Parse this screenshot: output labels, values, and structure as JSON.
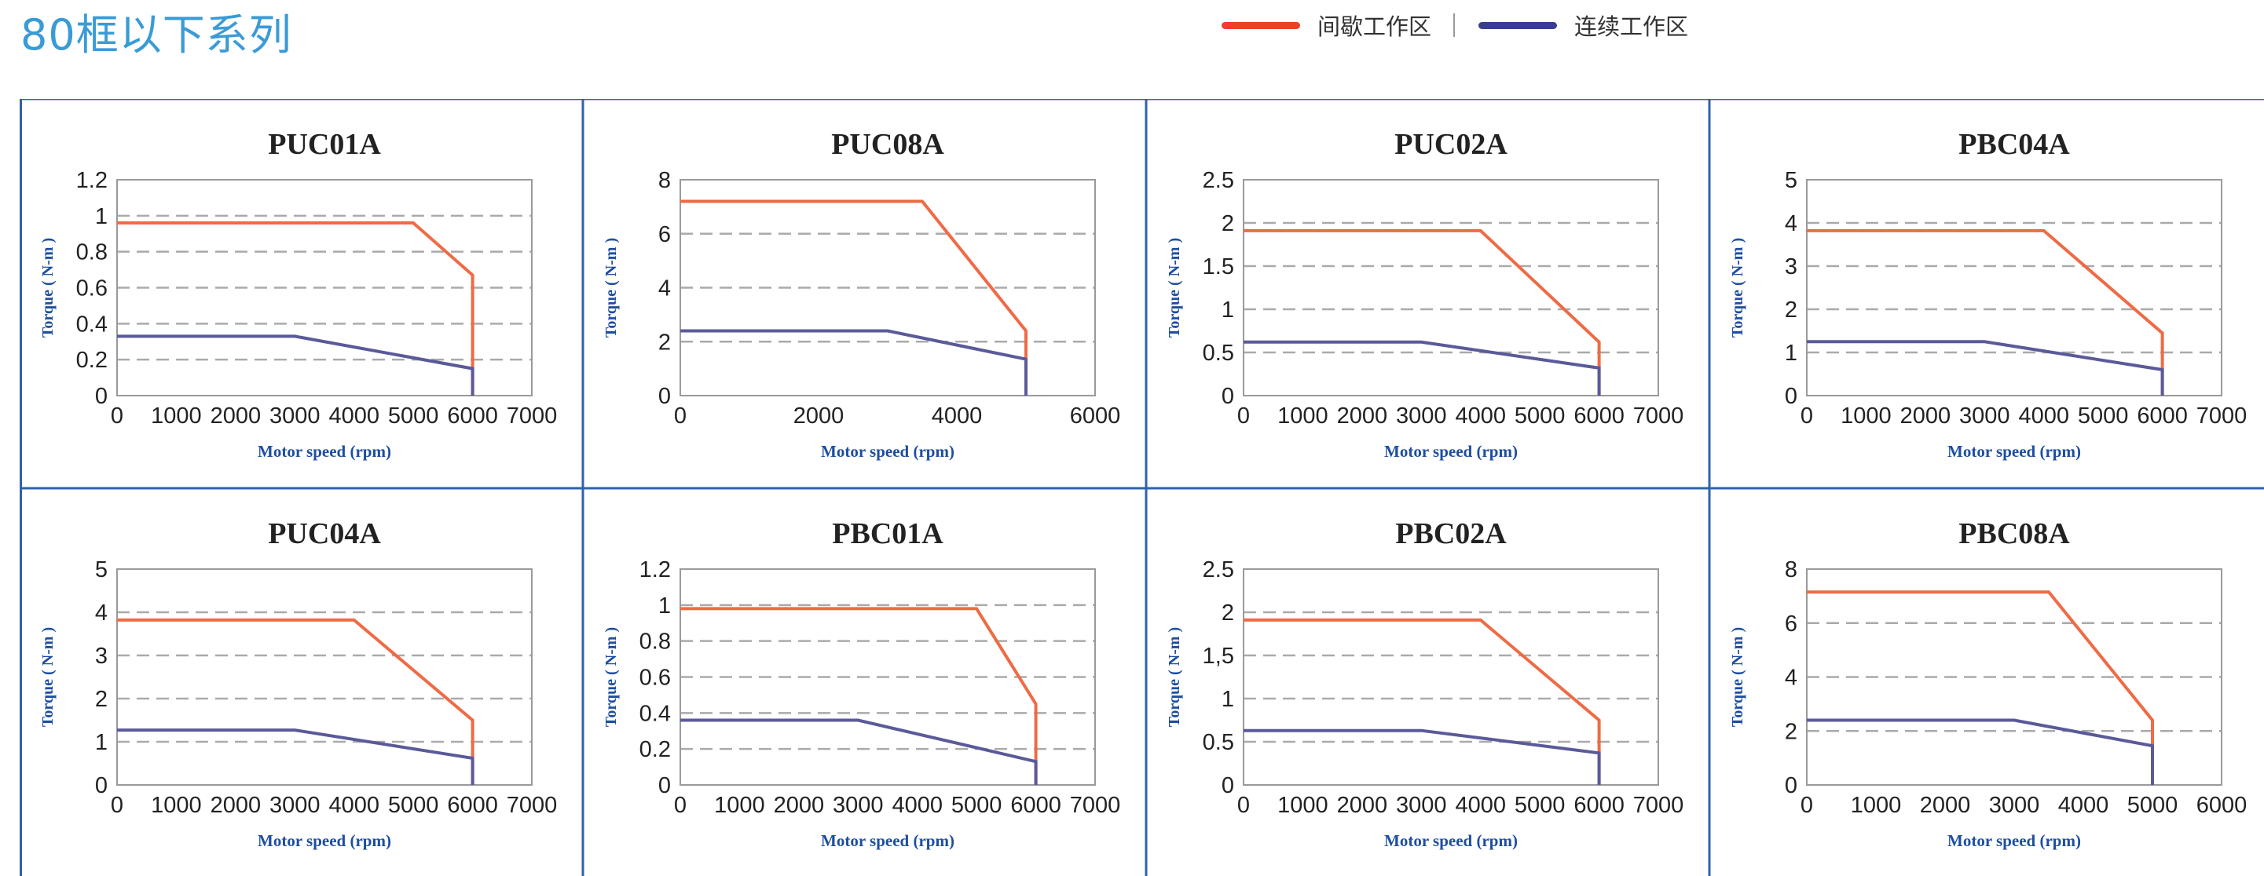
{
  "header": {
    "title": "80框以下系列"
  },
  "legend": {
    "items": [
      {
        "label": "间歇工作区",
        "color": "#ee3f2c"
      },
      {
        "label": "连续工作区",
        "color": "#3a3d8f"
      }
    ]
  },
  "colors": {
    "intermittent": "#ee6b45",
    "continuous": "#5a5a9a",
    "border": "#2e63a8",
    "axis_label": "#1d4ea0"
  },
  "chart_data": [
    {
      "type": "line",
      "title": "PUC01A",
      "xlabel": "Motor speed (rpm)",
      "ylabel": "Torque ( N-m )",
      "xlim": [
        0,
        7000
      ],
      "ylim": [
        0,
        1.2
      ],
      "xticks": [
        0,
        1000,
        2000,
        3000,
        4000,
        5000,
        6000,
        7000
      ],
      "yticks": [
        "0",
        "0.2",
        "0.4",
        "0.6",
        "0.8",
        "1",
        "1.2"
      ],
      "grid": "horizontal dashed",
      "series": [
        {
          "key": "intermittent",
          "x": [
            0,
            5000,
            6000,
            6000
          ],
          "y": [
            0.96,
            0.96,
            0.67,
            0
          ]
        },
        {
          "key": "continuous",
          "x": [
            0,
            3000,
            6000,
            6000
          ],
          "y": [
            0.33,
            0.33,
            0.15,
            0
          ]
        }
      ]
    },
    {
      "type": "line",
      "title": "PUC08A",
      "xlabel": "Motor speed (rpm)",
      "ylabel": "Torque ( N-m )",
      "xlim": [
        0,
        6000
      ],
      "ylim": [
        0,
        8
      ],
      "xticks": [
        0,
        2000,
        4000,
        6000
      ],
      "yticks": [
        "0",
        "2",
        "4",
        "6",
        "8"
      ],
      "grid": "horizontal dashed",
      "series": [
        {
          "key": "intermittent",
          "x": [
            0,
            3500,
            5000,
            5000
          ],
          "y": [
            7.2,
            7.2,
            2.4,
            0
          ]
        },
        {
          "key": "continuous",
          "x": [
            0,
            3000,
            5000,
            5000
          ],
          "y": [
            2.4,
            2.4,
            1.35,
            0
          ]
        }
      ]
    },
    {
      "type": "line",
      "title": "PUC02A",
      "xlabel": "Motor speed (rpm)",
      "ylabel": "Torque ( N-m )",
      "xlim": [
        0,
        7000
      ],
      "ylim": [
        0,
        2.5
      ],
      "xticks": [
        0,
        1000,
        2000,
        3000,
        4000,
        5000,
        6000,
        7000
      ],
      "yticks": [
        "0",
        "0.5",
        "1",
        "1.5",
        "2",
        "2.5"
      ],
      "grid": "horizontal dashed",
      "series": [
        {
          "key": "intermittent",
          "x": [
            0,
            4000,
            6000,
            6000
          ],
          "y": [
            1.91,
            1.91,
            0.62,
            0
          ]
        },
        {
          "key": "continuous",
          "x": [
            0,
            3000,
            6000,
            6000
          ],
          "y": [
            0.62,
            0.62,
            0.32,
            0
          ]
        }
      ]
    },
    {
      "type": "line",
      "title": "PBC04A",
      "xlabel": "Motor speed (rpm)",
      "ylabel": "Torque ( N-m )",
      "xlim": [
        0,
        7000
      ],
      "ylim": [
        0,
        5
      ],
      "xticks": [
        0,
        1000,
        2000,
        3000,
        4000,
        5000,
        6000,
        7000
      ],
      "yticks": [
        "0",
        "1",
        "2",
        "3",
        "4",
        "5"
      ],
      "grid": "horizontal dashed",
      "series": [
        {
          "key": "intermittent",
          "x": [
            0,
            4000,
            6000,
            6000
          ],
          "y": [
            3.82,
            3.82,
            1.45,
            0
          ]
        },
        {
          "key": "continuous",
          "x": [
            0,
            3000,
            6000,
            6000
          ],
          "y": [
            1.25,
            1.25,
            0.6,
            0
          ]
        }
      ]
    },
    {
      "type": "line",
      "title": "PUC04A",
      "xlabel": "Motor speed (rpm)",
      "ylabel": "Torque ( N-m )",
      "xlim": [
        0,
        7000
      ],
      "ylim": [
        0,
        5
      ],
      "xticks": [
        0,
        1000,
        2000,
        3000,
        4000,
        5000,
        6000,
        7000
      ],
      "yticks": [
        "0",
        "1",
        "2",
        "3",
        "4",
        "5"
      ],
      "grid": "horizontal dashed",
      "series": [
        {
          "key": "intermittent",
          "x": [
            0,
            4000,
            6000,
            6000
          ],
          "y": [
            3.82,
            3.82,
            1.5,
            0
          ]
        },
        {
          "key": "continuous",
          "x": [
            0,
            3000,
            6000,
            6000
          ],
          "y": [
            1.27,
            1.27,
            0.62,
            0
          ]
        }
      ]
    },
    {
      "type": "line",
      "title": "PBC01A",
      "xlabel": "Motor speed (rpm)",
      "ylabel": "Torque ( N-m )",
      "xlim": [
        0,
        7000
      ],
      "ylim": [
        0,
        1.2
      ],
      "xticks": [
        0,
        1000,
        2000,
        3000,
        4000,
        5000,
        6000,
        7000
      ],
      "yticks": [
        "0",
        "0.2",
        "0.4",
        "0.6",
        "0.8",
        "1",
        "1.2"
      ],
      "grid": "horizontal dashed",
      "series": [
        {
          "key": "intermittent",
          "x": [
            0,
            5000,
            6000,
            6000
          ],
          "y": [
            0.98,
            0.98,
            0.45,
            0
          ]
        },
        {
          "key": "continuous",
          "x": [
            0,
            3000,
            6000,
            6000
          ],
          "y": [
            0.36,
            0.36,
            0.13,
            0
          ]
        }
      ]
    },
    {
      "type": "line",
      "title": "PBC02A",
      "xlabel": "Motor speed (rpm)",
      "ylabel": "Torque ( N-m )",
      "xlim": [
        0,
        7000
      ],
      "ylim": [
        0,
        2.5
      ],
      "xticks": [
        0,
        1000,
        2000,
        3000,
        4000,
        5000,
        6000,
        7000
      ],
      "yticks": [
        "0",
        "0.5",
        "1",
        "1,5",
        "2",
        "2.5"
      ],
      "grid": "horizontal dashed",
      "series": [
        {
          "key": "intermittent",
          "x": [
            0,
            4000,
            6000,
            6000
          ],
          "y": [
            1.91,
            1.91,
            0.75,
            0
          ]
        },
        {
          "key": "continuous",
          "x": [
            0,
            3000,
            6000,
            6000
          ],
          "y": [
            0.63,
            0.63,
            0.37,
            0
          ]
        }
      ]
    },
    {
      "type": "line",
      "title": "PBC08A",
      "xlabel": "Motor speed (rpm)",
      "ylabel": "Torque ( N-m )",
      "xlim": [
        0,
        6000
      ],
      "ylim": [
        0,
        8
      ],
      "xticks": [
        0,
        1000,
        2000,
        3000,
        4000,
        5000,
        6000
      ],
      "yticks": [
        "0",
        "2",
        "4",
        "6",
        "8"
      ],
      "grid": "horizontal dashed",
      "series": [
        {
          "key": "intermittent",
          "x": [
            0,
            3500,
            5000,
            5000
          ],
          "y": [
            7.15,
            7.15,
            2.4,
            0
          ]
        },
        {
          "key": "continuous",
          "x": [
            0,
            3000,
            5000,
            5000
          ],
          "y": [
            2.4,
            2.4,
            1.45,
            0
          ]
        }
      ]
    }
  ]
}
